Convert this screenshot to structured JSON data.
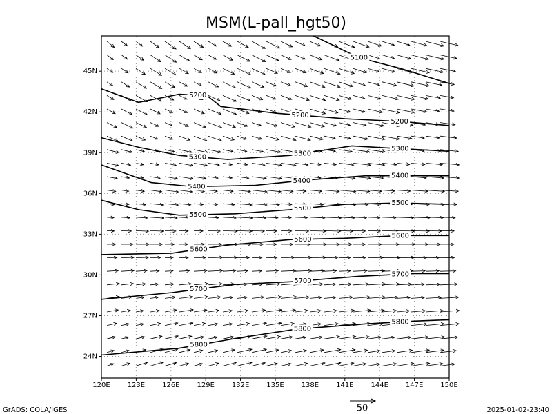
{
  "chart_data": {
    "type": "contour",
    "title": "MSM(L-pall_hgt50)",
    "xlim": [
      120,
      150
    ],
    "ylim": [
      22.4,
      47.6
    ],
    "xticks": [
      {
        "value": 120,
        "label": "120E"
      },
      {
        "value": 123,
        "label": "123E"
      },
      {
        "value": 126,
        "label": "126E"
      },
      {
        "value": 129,
        "label": "129E"
      },
      {
        "value": 132,
        "label": "132E"
      },
      {
        "value": 135,
        "label": "135E"
      },
      {
        "value": 138,
        "label": "138E"
      },
      {
        "value": 141,
        "label": "141E"
      },
      {
        "value": 144,
        "label": "144E"
      },
      {
        "value": 147,
        "label": "147E"
      },
      {
        "value": 150,
        "label": "150E"
      }
    ],
    "yticks": [
      {
        "value": 24,
        "label": "24N"
      },
      {
        "value": 27,
        "label": "27N"
      },
      {
        "value": 30,
        "label": "30N"
      },
      {
        "value": 33,
        "label": "33N"
      },
      {
        "value": 36,
        "label": "36N"
      },
      {
        "value": 39,
        "label": "39N"
      },
      {
        "value": 42,
        "label": "42N"
      },
      {
        "value": 45,
        "label": "45N"
      }
    ],
    "grid": true,
    "color": "#000000",
    "series": [
      {
        "level": 5100,
        "lon": [
          138.3,
          142.2,
          145.8,
          150
        ],
        "lat": [
          47.6,
          46.0,
          45.2,
          44.1
        ]
      },
      {
        "level": 5200,
        "lon": [
          120,
          123.2,
          126.7,
          129.1,
          130.3,
          135.1,
          141,
          145.8,
          150
        ],
        "lat": [
          43.7,
          42.7,
          43.3,
          43.2,
          42.4,
          41.9,
          41.5,
          41.3,
          41.0
        ]
      },
      {
        "level": 5300,
        "lon": [
          120,
          123.2,
          126.7,
          130.9,
          136.3,
          141.6,
          145.8,
          150
        ],
        "lat": [
          40.1,
          39.4,
          38.8,
          38.5,
          38.8,
          39.5,
          39.3,
          39.1
        ]
      },
      {
        "level": 5400,
        "lon": [
          120,
          124.3,
          127.9,
          133.3,
          138,
          142.8,
          150
        ],
        "lat": [
          38.1,
          36.8,
          36.5,
          36.6,
          37,
          37.3,
          37.3
        ]
      },
      {
        "level": 5500,
        "lon": [
          120,
          123.2,
          126.7,
          131.5,
          136.3,
          141,
          145.8,
          150
        ],
        "lat": [
          35.5,
          34.8,
          34.4,
          34.5,
          34.8,
          35.2,
          35.3,
          35.2
        ]
      },
      {
        "level": 5600,
        "lon": [
          120,
          126.1,
          130.9,
          136.3,
          141,
          145.8,
          150
        ],
        "lat": [
          31.5,
          31.6,
          32.2,
          32.6,
          32.7,
          32.9,
          32.9
        ]
      },
      {
        "level": 5700,
        "lon": [
          120,
          126.1,
          131.5,
          136.3,
          142.2,
          147,
          150
        ],
        "lat": [
          28.2,
          28.7,
          29.3,
          29.5,
          29.9,
          30.1,
          30.1
        ]
      },
      {
        "level": 5800,
        "lon": [
          120,
          126.7,
          132.1,
          136.8,
          142.8,
          147,
          150
        ],
        "lat": [
          24.1,
          24.6,
          25.4,
          26,
          26.4,
          26.6,
          26.7
        ]
      }
    ],
    "vector_scale": 50,
    "footer_left": "GrADS: COLA/IGES",
    "footer_right": "2025-01-02-23:40"
  }
}
